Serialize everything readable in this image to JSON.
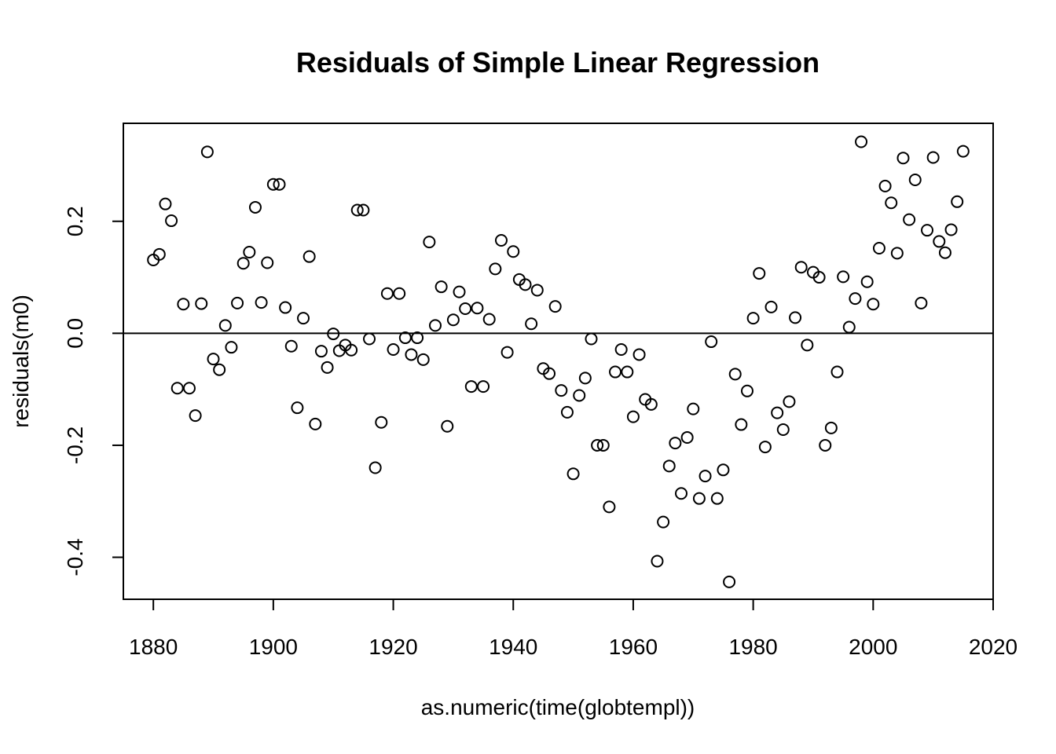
{
  "chart_data": {
    "type": "scatter",
    "title": "Residuals of Simple Linear Regression",
    "xlabel": "as.numeric(time(globtempl))",
    "ylabel": "residuals(m0)",
    "xlim": [
      1875,
      2020
    ],
    "ylim": [
      -0.475,
      0.375
    ],
    "xticks": [
      1880,
      1900,
      1920,
      1940,
      1960,
      1980,
      2000,
      2020
    ],
    "xtick_labels": [
      "1880",
      "1900",
      "1920",
      "1940",
      "1960",
      "1980",
      "2000",
      "2020"
    ],
    "yticks": [
      -0.4,
      -0.2,
      0.0,
      0.2
    ],
    "ytick_labels": [
      "-0.4",
      "-0.2",
      "0.0",
      "0.2"
    ],
    "reference_line": 0.0,
    "grid": false,
    "x": [
      1880,
      1881,
      1882,
      1883,
      1884,
      1885,
      1886,
      1887,
      1888,
      1889,
      1890,
      1891,
      1892,
      1893,
      1894,
      1895,
      1896,
      1897,
      1898,
      1899,
      1900,
      1901,
      1902,
      1903,
      1904,
      1905,
      1906,
      1907,
      1908,
      1909,
      1910,
      1911,
      1912,
      1913,
      1914,
      1915,
      1916,
      1917,
      1918,
      1919,
      1920,
      1921,
      1922,
      1923,
      1924,
      1925,
      1926,
      1927,
      1928,
      1929,
      1930,
      1931,
      1932,
      1933,
      1934,
      1935,
      1936,
      1937,
      1938,
      1939,
      1940,
      1941,
      1942,
      1943,
      1944,
      1945,
      1946,
      1947,
      1948,
      1949,
      1950,
      1951,
      1952,
      1953,
      1954,
      1955,
      1956,
      1957,
      1958,
      1959,
      1960,
      1961,
      1962,
      1963,
      1964,
      1965,
      1966,
      1967,
      1968,
      1969,
      1970,
      1971,
      1972,
      1973,
      1974,
      1975,
      1976,
      1977,
      1978,
      1979,
      1980,
      1981,
      1982,
      1983,
      1984,
      1985,
      1986,
      1987,
      1988,
      1989,
      1990,
      1991,
      1992,
      1993,
      1994,
      1995,
      1996,
      1997,
      1998,
      1999,
      2000,
      2001,
      2002,
      2003,
      2004,
      2005,
      2006,
      2007,
      2008,
      2009,
      2010,
      2011,
      2012,
      2013,
      2014,
      2015
    ],
    "y": [
      0.131,
      0.141,
      0.231,
      0.201,
      -0.098,
      0.052,
      -0.098,
      -0.147,
      0.053,
      0.324,
      -0.046,
      -0.065,
      0.014,
      -0.025,
      0.054,
      0.125,
      0.145,
      0.225,
      0.055,
      0.126,
      0.266,
      0.266,
      0.046,
      -0.023,
      -0.133,
      0.027,
      0.137,
      -0.162,
      -0.032,
      -0.061,
      -0.001,
      -0.031,
      -0.021,
      -0.03,
      0.22,
      0.22,
      -0.01,
      -0.24,
      -0.159,
      0.071,
      -0.029,
      0.071,
      -0.008,
      -0.038,
      -0.008,
      -0.047,
      0.163,
      0.014,
      0.083,
      -0.166,
      0.024,
      0.074,
      0.044,
      -0.095,
      0.045,
      -0.095,
      0.025,
      0.115,
      0.166,
      -0.034,
      0.146,
      0.096,
      0.087,
      0.017,
      0.077,
      -0.063,
      -0.072,
      0.048,
      -0.102,
      -0.141,
      -0.251,
      -0.111,
      -0.08,
      -0.01,
      -0.2,
      -0.2,
      -0.31,
      -0.069,
      -0.029,
      -0.069,
      -0.149,
      -0.038,
      -0.118,
      -0.127,
      -0.407,
      -0.337,
      -0.237,
      -0.196,
      -0.286,
      -0.186,
      -0.135,
      -0.295,
      -0.255,
      -0.015,
      -0.295,
      -0.244,
      -0.444,
      -0.073,
      -0.163,
      -0.103,
      0.027,
      0.107,
      -0.203,
      0.047,
      -0.142,
      -0.172,
      -0.122,
      0.028,
      0.118,
      -0.021,
      0.109,
      0.1,
      -0.2,
      -0.169,
      -0.069,
      0.101,
      0.011,
      0.062,
      0.342,
      0.092,
      0.052,
      0.152,
      0.263,
      0.233,
      0.143,
      0.313,
      0.203,
      0.274,
      0.054,
      0.184,
      0.314,
      0.164,
      0.144,
      0.185,
      0.235,
      0.325
    ]
  }
}
